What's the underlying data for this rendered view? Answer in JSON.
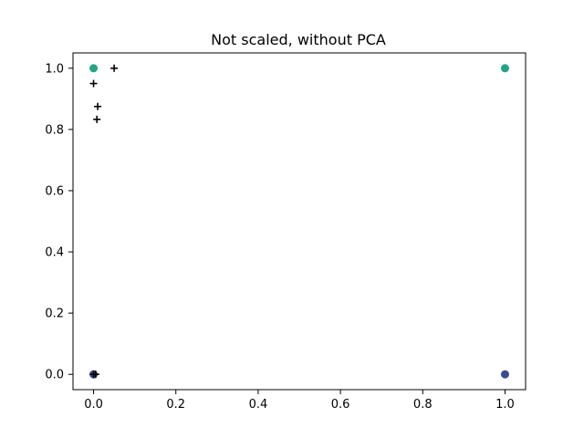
{
  "chart_data": {
    "type": "scatter",
    "title": "Not scaled, without PCA",
    "xlabel": "",
    "ylabel": "",
    "xlim": [
      -0.05,
      1.05
    ],
    "ylim": [
      -0.05,
      1.05
    ],
    "x_ticks": [
      0.0,
      0.2,
      0.4,
      0.6,
      0.8,
      1.0
    ],
    "x_tick_labels": [
      "0.0",
      "0.2",
      "0.4",
      "0.6",
      "0.8",
      "1.0"
    ],
    "y_ticks": [
      0.0,
      0.2,
      0.4,
      0.6,
      0.8,
      1.0
    ],
    "y_tick_labels": [
      "0.0",
      "0.2",
      "0.4",
      "0.6",
      "0.8",
      "1.0"
    ],
    "grid": false,
    "series": [
      {
        "marker": "circle",
        "color": "#3b4c8c",
        "x": [
          0.0,
          1.0
        ],
        "y": [
          0.0,
          0.0
        ]
      },
      {
        "marker": "circle",
        "color": "#26a385",
        "x": [
          0.0,
          1.0
        ],
        "y": [
          1.0,
          1.0
        ]
      },
      {
        "marker": "plus",
        "color": "#000000",
        "x": [
          0.05,
          0.0,
          0.01,
          0.008,
          0.0,
          0.005
        ],
        "y": [
          1.0,
          0.95,
          0.875,
          0.833,
          0.0,
          0.0
        ]
      }
    ]
  }
}
